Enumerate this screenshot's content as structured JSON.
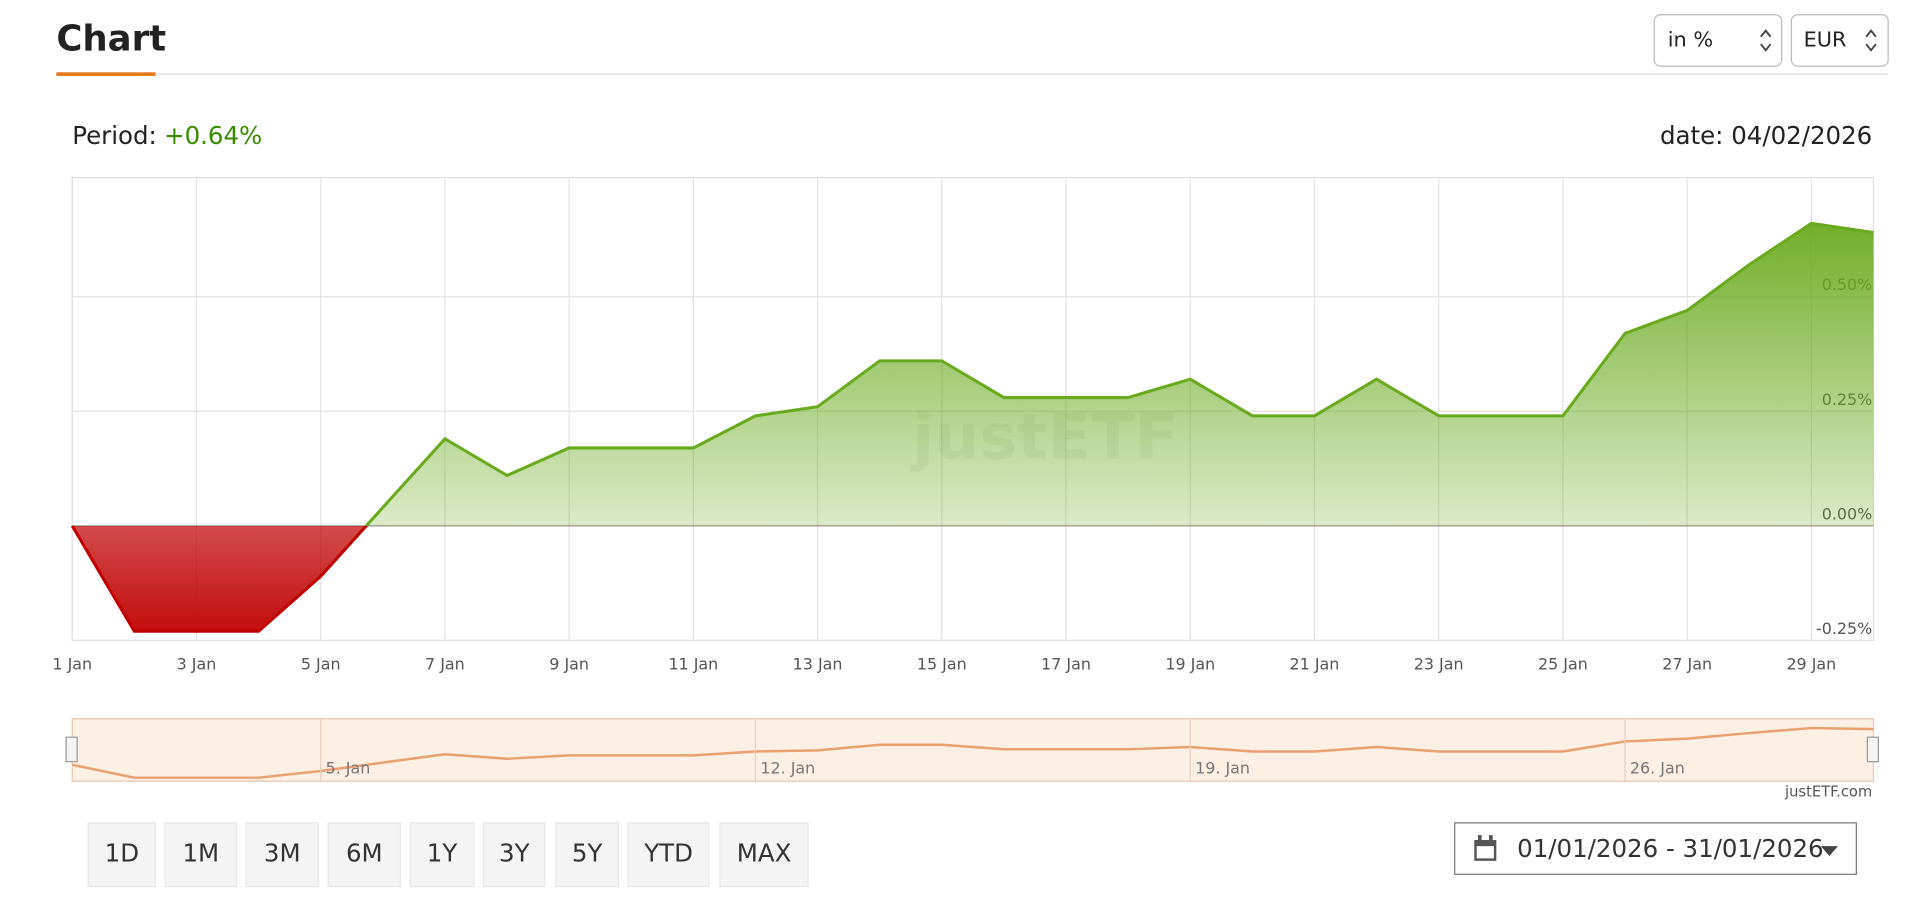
{
  "header": {
    "title": "Chart",
    "selects": [
      "in %",
      "EUR"
    ]
  },
  "summary": {
    "period_label": "Period:",
    "period_value": "+0.64%",
    "date": "date: 04/02/2026"
  },
  "chart_data": {
    "type": "area",
    "x": [
      1,
      2,
      3,
      4,
      5,
      6,
      7,
      8,
      9,
      10,
      11,
      12,
      13,
      14,
      15,
      16,
      17,
      18,
      19,
      20,
      21,
      22,
      23,
      24,
      25,
      26,
      27,
      28,
      29,
      30
    ],
    "values": [
      0,
      -0.23,
      -0.23,
      -0.23,
      -0.11,
      0.04,
      0.19,
      0.11,
      0.17,
      0.17,
      0.17,
      0.24,
      0.26,
      0.36,
      0.36,
      0.28,
      0.28,
      0.28,
      0.32,
      0.24,
      0.24,
      0.32,
      0.24,
      0.24,
      0.24,
      0.42,
      0.47,
      0.57,
      0.66,
      0.64
    ],
    "color": "#6aaa1e",
    "negative_color": "#c00000",
    "xlim": [
      1,
      30
    ],
    "xticks": [
      {
        "value": 1,
        "label": "1 Jan"
      },
      {
        "value": 3,
        "label": "3 Jan"
      },
      {
        "value": 5,
        "label": "5 Jan"
      },
      {
        "value": 7,
        "label": "7 Jan"
      },
      {
        "value": 9,
        "label": "9 Jan"
      },
      {
        "value": 11,
        "label": "11 Jan"
      },
      {
        "value": 13,
        "label": "13 Jan"
      },
      {
        "value": 15,
        "label": "15 Jan"
      },
      {
        "value": 17,
        "label": "17 Jan"
      },
      {
        "value": 19,
        "label": "19 Jan"
      },
      {
        "value": 21,
        "label": "21 Jan"
      },
      {
        "value": 23,
        "label": "23 Jan"
      },
      {
        "value": 25,
        "label": "25 Jan"
      },
      {
        "value": 27,
        "label": "27 Jan"
      },
      {
        "value": 29,
        "label": "29 Jan"
      }
    ],
    "ylim": [
      -0.25,
      0.76
    ],
    "yticks": [
      {
        "value": -0.25,
        "label": "-0.25%"
      },
      {
        "value": 0,
        "label": "0.00%"
      },
      {
        "value": 0.25,
        "label": "0.25%"
      },
      {
        "value": 0.5,
        "label": "0.50%"
      }
    ],
    "grid": true,
    "watermark": "justETF",
    "navigator_ticks": [
      {
        "value": 5,
        "label": "5. Jan"
      },
      {
        "value": 12,
        "label": "12. Jan"
      },
      {
        "value": 19,
        "label": "19. Jan"
      },
      {
        "value": 26,
        "label": "26. Jan"
      }
    ],
    "credit": "justETF.com"
  },
  "controls": {
    "ranges": [
      "1D",
      "1M",
      "3M",
      "6M",
      "1Y",
      "3Y",
      "5Y",
      "YTD",
      "MAX"
    ],
    "date_range": "01/01/2026 - 31/01/2026"
  }
}
